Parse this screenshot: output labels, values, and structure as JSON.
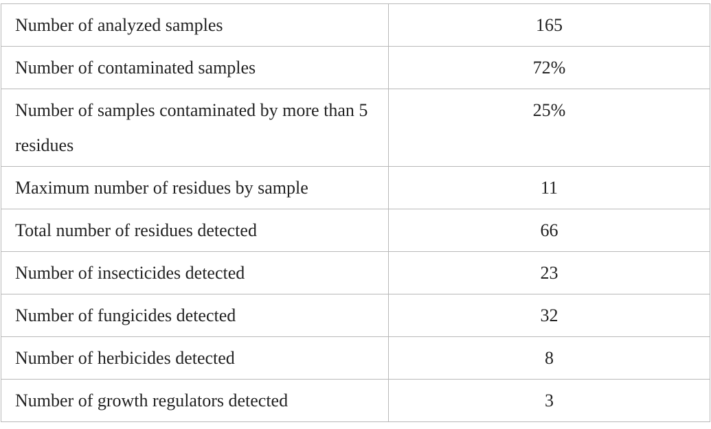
{
  "table": {
    "rows": [
      {
        "label": "Number of analyzed samples",
        "value": "165"
      },
      {
        "label": "Number of contaminated samples",
        "value": "72%"
      },
      {
        "label": "Number of samples contaminated by more than 5 residues",
        "value": "25%"
      },
      {
        "label": "Maximum number of residues by sample",
        "value": "11"
      },
      {
        "label": "Total number of residues detected",
        "value": "66"
      },
      {
        "label": "Number of insecticides detected",
        "value": "23"
      },
      {
        "label": "Number of fungicides detected",
        "value": "32"
      },
      {
        "label": "Number of herbicides detected",
        "value": "8"
      },
      {
        "label": "Number of growth regulators detected",
        "value": "3"
      }
    ]
  }
}
